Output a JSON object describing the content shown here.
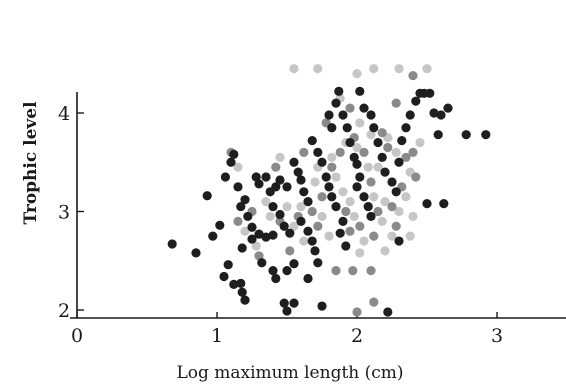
{
  "chart_data": {
    "type": "scatter",
    "title": "",
    "xlabel": "Log maximum length (cm)",
    "ylabel": "Trophic level",
    "xlim": [
      0,
      3.5
    ],
    "ylim": [
      1.95,
      4.3
    ],
    "xticks": [
      0,
      1,
      2,
      3
    ],
    "xtick_labels": [
      "0",
      "1",
      "2",
      "3"
    ],
    "yticks": [
      2,
      3,
      4
    ],
    "ytick_labels": [
      "2",
      "3",
      "4"
    ],
    "grid": false,
    "legend": "none",
    "series": [
      {
        "shade": "dark",
        "color": "#1e1e1e",
        "points": [
          [
            0.68,
            2.67
          ],
          [
            0.85,
            2.58
          ],
          [
            0.93,
            3.16
          ],
          [
            0.97,
            2.75
          ],
          [
            1.02,
            2.86
          ],
          [
            1.05,
            2.34
          ],
          [
            1.08,
            2.46
          ],
          [
            1.12,
            2.26
          ],
          [
            1.17,
            2.27
          ],
          [
            1.18,
            2.18
          ],
          [
            1.2,
            2.1
          ],
          [
            1.06,
            3.35
          ],
          [
            1.1,
            3.5
          ],
          [
            1.12,
            3.58
          ],
          [
            1.15,
            3.25
          ],
          [
            1.17,
            3.05
          ],
          [
            1.2,
            3.12
          ],
          [
            1.22,
            2.95
          ],
          [
            1.25,
            2.84
          ],
          [
            1.18,
            2.63
          ],
          [
            1.25,
            2.72
          ],
          [
            1.3,
            2.77
          ],
          [
            1.35,
            2.74
          ],
          [
            1.4,
            2.76
          ],
          [
            1.28,
            3.35
          ],
          [
            1.3,
            3.28
          ],
          [
            1.35,
            3.35
          ],
          [
            1.38,
            3.2
          ],
          [
            1.42,
            3.25
          ],
          [
            1.45,
            3.32
          ],
          [
            1.5,
            3.25
          ],
          [
            1.4,
            3.05
          ],
          [
            1.45,
            2.97
          ],
          [
            1.48,
            2.85
          ],
          [
            1.52,
            2.78
          ],
          [
            1.32,
            2.48
          ],
          [
            1.4,
            2.4
          ],
          [
            1.42,
            2.32
          ],
          [
            1.5,
            2.4
          ],
          [
            1.55,
            2.47
          ],
          [
            1.48,
            2.07
          ],
          [
            1.5,
            1.99
          ],
          [
            1.55,
            2.07
          ],
          [
            1.55,
            3.5
          ],
          [
            1.58,
            3.4
          ],
          [
            1.6,
            3.32
          ],
          [
            1.62,
            3.2
          ],
          [
            1.65,
            3.1
          ],
          [
            1.6,
            2.9
          ],
          [
            1.65,
            2.8
          ],
          [
            1.68,
            2.7
          ],
          [
            1.7,
            2.6
          ],
          [
            1.72,
            2.48
          ],
          [
            1.65,
            2.32
          ],
          [
            1.75,
            2.04
          ],
          [
            1.68,
            3.72
          ],
          [
            1.72,
            3.6
          ],
          [
            1.75,
            3.5
          ],
          [
            1.78,
            3.35
          ],
          [
            1.8,
            3.25
          ],
          [
            1.82,
            3.15
          ],
          [
            1.85,
            3.05
          ],
          [
            1.9,
            2.9
          ],
          [
            1.88,
            2.78
          ],
          [
            1.92,
            2.65
          ],
          [
            1.8,
            3.98
          ],
          [
            1.82,
            3.85
          ],
          [
            1.85,
            4.1
          ],
          [
            1.87,
            4.22
          ],
          [
            1.9,
            3.98
          ],
          [
            1.93,
            3.85
          ],
          [
            1.95,
            3.7
          ],
          [
            1.98,
            3.55
          ],
          [
            2.0,
            3.48
          ],
          [
            2.02,
            3.35
          ],
          [
            2.0,
            3.25
          ],
          [
            2.05,
            3.15
          ],
          [
            2.08,
            3.05
          ],
          [
            2.1,
            2.95
          ],
          [
            2.02,
            4.22
          ],
          [
            2.05,
            4.05
          ],
          [
            2.1,
            3.98
          ],
          [
            2.12,
            3.85
          ],
          [
            2.15,
            3.7
          ],
          [
            2.18,
            3.55
          ],
          [
            2.2,
            3.4
          ],
          [
            2.25,
            3.3
          ],
          [
            2.28,
            3.2
          ],
          [
            2.3,
            3.5
          ],
          [
            2.32,
            3.72
          ],
          [
            2.35,
            3.85
          ],
          [
            2.38,
            3.98
          ],
          [
            2.42,
            4.12
          ],
          [
            2.45,
            4.2
          ],
          [
            2.48,
            4.2
          ],
          [
            2.52,
            4.2
          ],
          [
            2.55,
            4.0
          ],
          [
            2.6,
            3.98
          ],
          [
            2.65,
            4.05
          ],
          [
            2.58,
            3.78
          ],
          [
            2.78,
            3.78
          ],
          [
            2.92,
            3.78
          ],
          [
            2.5,
            3.08
          ],
          [
            2.62,
            3.08
          ],
          [
            2.3,
            2.7
          ],
          [
            2.22,
            1.98
          ]
        ]
      },
      {
        "shade": "mid",
        "color": "#8a8a8a",
        "points": [
          [
            1.1,
            3.6
          ],
          [
            1.15,
            2.9
          ],
          [
            1.25,
            3.0
          ],
          [
            1.3,
            2.55
          ],
          [
            1.42,
            3.45
          ],
          [
            1.45,
            2.9
          ],
          [
            1.52,
            2.6
          ],
          [
            1.58,
            2.95
          ],
          [
            1.62,
            3.6
          ],
          [
            1.68,
            3.0
          ],
          [
            1.72,
            2.85
          ],
          [
            1.75,
            3.15
          ],
          [
            1.82,
            3.45
          ],
          [
            1.88,
            3.6
          ],
          [
            1.92,
            3.0
          ],
          [
            1.95,
            2.8
          ],
          [
            1.98,
            3.75
          ],
          [
            2.02,
            2.85
          ],
          [
            2.05,
            3.6
          ],
          [
            2.1,
            3.3
          ],
          [
            2.12,
            2.75
          ],
          [
            2.15,
            3.0
          ],
          [
            2.18,
            3.8
          ],
          [
            2.22,
            3.65
          ],
          [
            2.25,
            3.05
          ],
          [
            2.28,
            2.85
          ],
          [
            2.32,
            3.25
          ],
          [
            2.35,
            3.55
          ],
          [
            2.4,
            3.6
          ],
          [
            2.42,
            3.35
          ],
          [
            1.85,
            2.4
          ],
          [
            1.97,
            2.4
          ],
          [
            2.1,
            2.4
          ],
          [
            2.0,
            1.98
          ],
          [
            2.12,
            2.08
          ],
          [
            1.78,
            3.9
          ],
          [
            1.95,
            4.05
          ],
          [
            2.28,
            4.1
          ],
          [
            2.4,
            4.38
          ]
        ]
      },
      {
        "shade": "light",
        "color": "#c6c6c6",
        "points": [
          [
            1.15,
            3.45
          ],
          [
            1.2,
            2.8
          ],
          [
            1.28,
            2.65
          ],
          [
            1.35,
            3.1
          ],
          [
            1.38,
            2.95
          ],
          [
            1.45,
            3.55
          ],
          [
            1.5,
            3.05
          ],
          [
            1.55,
            2.85
          ],
          [
            1.6,
            3.05
          ],
          [
            1.62,
            2.7
          ],
          [
            1.7,
            3.3
          ],
          [
            1.72,
            3.45
          ],
          [
            1.75,
            2.95
          ],
          [
            1.8,
            2.75
          ],
          [
            1.82,
            3.55
          ],
          [
            1.85,
            3.35
          ],
          [
            1.9,
            3.2
          ],
          [
            1.92,
            3.7
          ],
          [
            1.95,
            3.1
          ],
          [
            1.98,
            2.95
          ],
          [
            2.0,
            3.65
          ],
          [
            2.02,
            3.9
          ],
          [
            2.05,
            2.7
          ],
          [
            2.08,
            3.45
          ],
          [
            2.1,
            3.78
          ],
          [
            2.12,
            3.15
          ],
          [
            2.15,
            3.45
          ],
          [
            2.18,
            2.9
          ],
          [
            2.2,
            3.1
          ],
          [
            2.22,
            3.75
          ],
          [
            2.25,
            2.75
          ],
          [
            2.28,
            3.6
          ],
          [
            2.3,
            3.0
          ],
          [
            2.35,
            3.15
          ],
          [
            2.38,
            3.4
          ],
          [
            2.4,
            2.95
          ],
          [
            2.45,
            3.7
          ],
          [
            2.0,
            4.4
          ],
          [
            2.12,
            4.45
          ],
          [
            1.72,
            4.45
          ],
          [
            1.55,
            4.45
          ],
          [
            1.88,
            4.15
          ],
          [
            2.3,
            4.45
          ],
          [
            2.5,
            4.45
          ],
          [
            2.2,
            2.6
          ],
          [
            2.38,
            2.75
          ],
          [
            2.02,
            2.58
          ]
        ]
      }
    ]
  }
}
